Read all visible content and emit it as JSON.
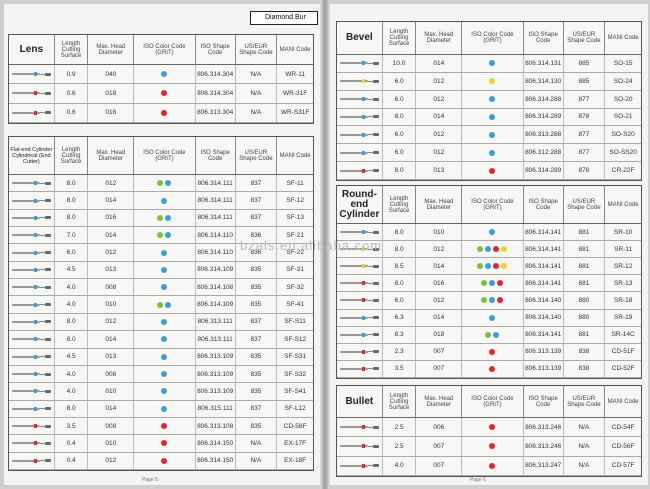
{
  "header_tag": "Diamond Bur",
  "watermark": "bzals.en.alibaba.com",
  "footer_left": "Page 5",
  "footer_right": "Page 6",
  "colors": {
    "blue": "#3aa0d8",
    "red": "#e3262b",
    "green": "#7cc242",
    "yellow": "#f2d22e"
  },
  "columns": [
    "Length Cutling Surface",
    "Max. Head Diameter",
    "ISO Color Code (GRIT)",
    "ISO Shape Code",
    "US/EUR Shape Code",
    "MANI Code"
  ],
  "columns_iso": [
    "Length Cutling Surface",
    "Max. Head Diameter",
    "ISO Color Code (GRIT)",
    "ISO Shape Code",
    "US/EUR Shape Code",
    "MANI Code"
  ],
  "sections": {
    "lens": {
      "title": "Lens",
      "rows": [
        {
          "len": "0.9",
          "dia": "040",
          "grit": [
            "blue"
          ],
          "iso": "806.314.304",
          "us": "N/A",
          "mani": "WR-11"
        },
        {
          "len": "0.6",
          "dia": "018",
          "grit": [
            "red"
          ],
          "iso": "806.314.304",
          "us": "N/A",
          "mani": "WR-31F"
        },
        {
          "len": "0.6",
          "dia": "016",
          "grit": [
            "red"
          ],
          "iso": "806.313.304",
          "us": "N/A",
          "mani": "WR-S31F"
        }
      ]
    },
    "flat": {
      "title": "Flat-end Cylinder Cylindrical (End Cutter)",
      "rows": [
        {
          "len": "8.0",
          "dia": "012",
          "grit": [
            "green",
            "blue"
          ],
          "iso": "806.314.111",
          "us": "837",
          "mani": "SF-11"
        },
        {
          "len": "8.0",
          "dia": "014",
          "grit": [
            "blue"
          ],
          "iso": "806.314.111",
          "us": "837",
          "mani": "SF-12"
        },
        {
          "len": "8.0",
          "dia": "016",
          "grit": [
            "green",
            "blue"
          ],
          "iso": "806.314.111",
          "us": "837",
          "mani": "SF-13"
        },
        {
          "len": "7.0",
          "dia": "014",
          "grit": [
            "green",
            "blue"
          ],
          "iso": "806.314.110",
          "us": "836",
          "mani": "SF-21"
        },
        {
          "len": "6.0",
          "dia": "012",
          "grit": [
            "blue"
          ],
          "iso": "806.314.110",
          "us": "836",
          "mani": "SF-22"
        },
        {
          "len": "4.5",
          "dia": "013",
          "grit": [
            "blue"
          ],
          "iso": "806.314.109",
          "us": "835",
          "mani": "SF-31"
        },
        {
          "len": "4.0",
          "dia": "008",
          "grit": [
            "blue"
          ],
          "iso": "806.314.108",
          "us": "835",
          "mani": "SF-32"
        },
        {
          "len": "4.0",
          "dia": "010",
          "grit": [
            "green",
            "blue"
          ],
          "iso": "806.314.109",
          "us": "835",
          "mani": "SF-41"
        },
        {
          "len": "8.0",
          "dia": "012",
          "grit": [
            "blue"
          ],
          "iso": "806.313.111",
          "us": "837",
          "mani": "SF-S11"
        },
        {
          "len": "8.0",
          "dia": "014",
          "grit": [
            "blue"
          ],
          "iso": "806.313.111",
          "us": "837",
          "mani": "SF-S12"
        },
        {
          "len": "4.5",
          "dia": "013",
          "grit": [
            "blue"
          ],
          "iso": "806.313.109",
          "us": "835",
          "mani": "SF-S31"
        },
        {
          "len": "4.0",
          "dia": "008",
          "grit": [
            "blue"
          ],
          "iso": "806.313.109",
          "us": "835",
          "mani": "SF-S32"
        },
        {
          "len": "4.0",
          "dia": "010",
          "grit": [
            "blue"
          ],
          "iso": "806.313.109",
          "us": "835",
          "mani": "SF-S41"
        },
        {
          "len": "8.0",
          "dia": "014",
          "grit": [
            "blue"
          ],
          "iso": "806.315.111",
          "us": "837",
          "mani": "SF-L12"
        },
        {
          "len": "3.5",
          "dia": "008",
          "grit": [
            "red"
          ],
          "iso": "806.313.108",
          "us": "835",
          "mani": "CD-58F"
        },
        {
          "len": "0.4",
          "dia": "010",
          "grit": [
            "red"
          ],
          "iso": "806.314.150",
          "us": "N/A",
          "mani": "EX-17F"
        },
        {
          "len": "0.4",
          "dia": "012",
          "grit": [
            "red"
          ],
          "iso": "806.314.150",
          "us": "N/A",
          "mani": "EX-18F"
        }
      ]
    },
    "bevel": {
      "title": "Bevel",
      "rows": [
        {
          "len": "10.0",
          "dia": "014",
          "grit": [
            "blue"
          ],
          "iso": "806.314.131",
          "us": "885",
          "mani": "SO-15"
        },
        {
          "len": "6.0",
          "dia": "012",
          "grit": [
            "yellow"
          ],
          "iso": "806.314.130",
          "us": "885",
          "mani": "SO-24"
        },
        {
          "len": "6.0",
          "dia": "012",
          "grit": [
            "blue"
          ],
          "iso": "806.314.288",
          "us": "877",
          "mani": "SO-20"
        },
        {
          "len": "8.0",
          "dia": "014",
          "grit": [
            "blue"
          ],
          "iso": "806.314.289",
          "us": "878",
          "mani": "SO-21"
        },
        {
          "len": "6.0",
          "dia": "012",
          "grit": [
            "blue"
          ],
          "iso": "806.313.288",
          "us": "877",
          "mani": "SO-S20"
        },
        {
          "len": "6.0",
          "dia": "012",
          "grit": [
            "blue"
          ],
          "iso": "806.312.288",
          "us": "877",
          "mani": "SO-SS20"
        },
        {
          "len": "8.0",
          "dia": "013",
          "grit": [
            "red"
          ],
          "iso": "806.314.289",
          "us": "878",
          "mani": "CR-22F"
        }
      ]
    },
    "round": {
      "title": "Round-end Cylinder",
      "rows": [
        {
          "len": "8.0",
          "dia": "010",
          "grit": [
            "blue"
          ],
          "iso": "806.314.141",
          "us": "881",
          "mani": "SR-10"
        },
        {
          "len": "8.0",
          "dia": "012",
          "grit": [
            "green",
            "blue",
            "red",
            "yellow"
          ],
          "iso": "806.314.141",
          "us": "881",
          "mani": "SR-11"
        },
        {
          "len": "8.5",
          "dia": "014",
          "grit": [
            "green",
            "blue",
            "red",
            "yellow"
          ],
          "iso": "806.314.141",
          "us": "881",
          "mani": "SR-12"
        },
        {
          "len": "8.0",
          "dia": "016",
          "grit": [
            "green",
            "blue",
            "red"
          ],
          "iso": "806.314.141",
          "us": "881",
          "mani": "SR-13"
        },
        {
          "len": "6.0",
          "dia": "012",
          "grit": [
            "green",
            "blue",
            "red"
          ],
          "iso": "806.314.140",
          "us": "880",
          "mani": "SR-18"
        },
        {
          "len": "6.3",
          "dia": "014",
          "grit": [
            "blue"
          ],
          "iso": "806.314.140",
          "us": "880",
          "mani": "SR-19"
        },
        {
          "len": "8.3",
          "dia": "018",
          "grit": [
            "green",
            "blue"
          ],
          "iso": "806.314.141",
          "us": "881",
          "mani": "SR-14C"
        },
        {
          "len": "2.3",
          "dia": "007",
          "grit": [
            "red"
          ],
          "iso": "806.313.139",
          "us": "838",
          "mani": "CD-51F"
        },
        {
          "len": "3.5",
          "dia": "007",
          "grit": [
            "red"
          ],
          "iso": "806.313.139",
          "us": "838",
          "mani": "CD-52F"
        }
      ]
    },
    "bullet": {
      "title": "Bullet",
      "rows": [
        {
          "len": "2.5",
          "dia": "006",
          "grit": [
            "red"
          ],
          "iso": "806.313.246",
          "us": "N/A",
          "mani": "CD-54F"
        },
        {
          "len": "2.5",
          "dia": "007",
          "grit": [
            "red"
          ],
          "iso": "806.313.246",
          "us": "N/A",
          "mani": "CD-56F"
        },
        {
          "len": "4.0",
          "dia": "007",
          "grit": [
            "red"
          ],
          "iso": "806.313.247",
          "us": "N/A",
          "mani": "CD-57F"
        }
      ]
    }
  }
}
